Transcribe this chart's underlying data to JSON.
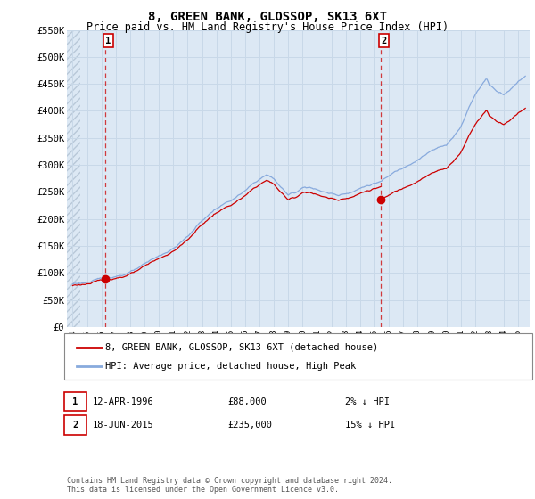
{
  "title": "8, GREEN BANK, GLOSSOP, SK13 6XT",
  "subtitle": "Price paid vs. HM Land Registry's House Price Index (HPI)",
  "ylim": [
    0,
    550000
  ],
  "yticks": [
    0,
    50000,
    100000,
    150000,
    200000,
    250000,
    300000,
    350000,
    400000,
    450000,
    500000,
    550000
  ],
  "ytick_labels": [
    "£0",
    "£50K",
    "£100K",
    "£150K",
    "£200K",
    "£250K",
    "£300K",
    "£350K",
    "£400K",
    "£450K",
    "£500K",
    "£550K"
  ],
  "xlim_start": 1993.6,
  "xlim_end": 2025.8,
  "xticks": [
    1994,
    1995,
    1996,
    1997,
    1998,
    1999,
    2000,
    2001,
    2002,
    2003,
    2004,
    2005,
    2006,
    2007,
    2008,
    2009,
    2010,
    2011,
    2012,
    2013,
    2014,
    2015,
    2016,
    2017,
    2018,
    2019,
    2020,
    2021,
    2022,
    2023,
    2024,
    2025
  ],
  "sale1_x": 1996.28,
  "sale1_y": 88000,
  "sale2_x": 2015.46,
  "sale2_y": 235000,
  "sale_color": "#cc0000",
  "hpi_color": "#88aadd",
  "grid_color": "#c8d8e8",
  "bg_color": "#dce8f4",
  "legend_entry1": "8, GREEN BANK, GLOSSOP, SK13 6XT (detached house)",
  "legend_entry2": "HPI: Average price, detached house, High Peak",
  "annot1_date": "12-APR-1996",
  "annot1_price": "£88,000",
  "annot1_hpi": "2% ↓ HPI",
  "annot2_date": "18-JUN-2015",
  "annot2_price": "£235,000",
  "annot2_hpi": "15% ↓ HPI",
  "footer": "Contains HM Land Registry data © Crown copyright and database right 2024.\nThis data is licensed under the Open Government Licence v3.0."
}
